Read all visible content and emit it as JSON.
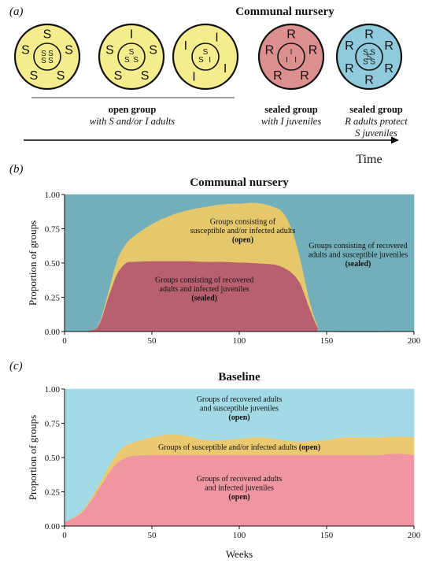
{
  "panel_a": {
    "label": "(a)",
    "title": "Communal nursery",
    "time_label": "Time",
    "groups": [
      {
        "fill": "#f5ec8e",
        "outer": [
          "S",
          "S",
          "S",
          "S",
          "S"
        ],
        "inner": [
          "S",
          "S",
          "S",
          "S"
        ]
      },
      {
        "fill": "#f5ec8e",
        "outer": [
          "I",
          "S",
          "S",
          "S",
          "S"
        ],
        "inner": [
          "S",
          "S",
          "S"
        ]
      },
      {
        "fill": "#f5ec8e",
        "outer": [
          "I",
          "I",
          "I",
          "I"
        ],
        "inner": [
          "S",
          "I",
          "S"
        ]
      },
      {
        "fill": "#dc8f8f",
        "outer": [
          "R",
          "R",
          "R",
          "R",
          "R"
        ],
        "inner": [
          "I",
          "I",
          "I"
        ]
      },
      {
        "fill": "#8fcbdc",
        "outer": [
          "R",
          "R",
          "R",
          "R",
          "R",
          "R"
        ],
        "inner": [
          "S",
          "S",
          "S",
          "S",
          "S"
        ]
      }
    ],
    "captions": [
      {
        "bold": "open group",
        "italic": [
          "with S and/or I adults"
        ]
      },
      {
        "bold": "sealed group",
        "italic": [
          "with I juveniles"
        ]
      },
      {
        "bold": "sealed group",
        "italic": [
          "R adults protect",
          "S juveniles"
        ]
      }
    ]
  },
  "chart_data": [
    {
      "panel_label": "(b)",
      "type": "area",
      "stacked": true,
      "title": "Communal nursery",
      "xlabel": "",
      "ylabel": "Proportion of groups",
      "xlim": [
        0,
        200
      ],
      "ylim": [
        0,
        1
      ],
      "xticks": [
        0,
        50,
        100,
        150,
        200
      ],
      "yticks": [
        0.0,
        0.25,
        0.5,
        0.75,
        1.0
      ],
      "x": [
        0,
        15,
        20,
        25,
        30,
        35,
        40,
        50,
        60,
        70,
        80,
        90,
        100,
        110,
        120,
        125,
        130,
        135,
        140,
        145,
        150,
        200
      ],
      "series": [
        {
          "color": "#b86070",
          "values": [
            0,
            0.01,
            0.06,
            0.25,
            0.42,
            0.5,
            0.51,
            0.515,
            0.515,
            0.515,
            0.51,
            0.51,
            0.505,
            0.5,
            0.49,
            0.47,
            0.43,
            0.35,
            0.18,
            0.03,
            0,
            0
          ]
        },
        {
          "color": "#e6c86c",
          "values": [
            0,
            0.0,
            0.01,
            0.04,
            0.1,
            0.14,
            0.19,
            0.27,
            0.33,
            0.37,
            0.4,
            0.42,
            0.43,
            0.44,
            0.42,
            0.4,
            0.32,
            0.18,
            0.06,
            0.01,
            0,
            0
          ]
        },
        {
          "color": "#72afbb",
          "values": [
            1,
            0.99,
            0.93,
            0.71,
            0.48,
            0.36,
            0.3,
            0.215,
            0.155,
            0.115,
            0.09,
            0.07,
            0.065,
            0.06,
            0.09,
            0.13,
            0.25,
            0.47,
            0.76,
            0.96,
            1,
            1
          ]
        }
      ],
      "annotations": [
        {
          "lines": [
            "Groups consisting of",
            "susceptible and/or infected adults"
          ],
          "bold": "(open)",
          "x": 102,
          "y": 0.735
        },
        {
          "lines": [
            "Groups consisting of recovered",
            "adults and susceptible juveniles"
          ],
          "bold": "(sealed)",
          "x": 168,
          "y": 0.56
        },
        {
          "lines": [
            "Groups consisting of recovered",
            "adults and infected juveniles"
          ],
          "bold": "(sealed)",
          "x": 80,
          "y": 0.31
        }
      ]
    },
    {
      "panel_label": "(c)",
      "type": "area",
      "stacked": true,
      "title": "Baseline",
      "xlabel": "Weeks",
      "ylabel": "Proportion of groups",
      "xlim": [
        0,
        200
      ],
      "ylim": [
        0,
        1
      ],
      "xticks": [
        0,
        50,
        100,
        150,
        200
      ],
      "yticks": [
        0.0,
        0.25,
        0.5,
        0.75,
        1.0
      ],
      "x": [
        0,
        10,
        20,
        25,
        30,
        35,
        40,
        50,
        60,
        70,
        80,
        90,
        100,
        110,
        120,
        130,
        140,
        150,
        160,
        170,
        180,
        190,
        200
      ],
      "series": [
        {
          "color": "#f096a2",
          "values": [
            0.03,
            0.1,
            0.28,
            0.38,
            0.46,
            0.5,
            0.515,
            0.52,
            0.52,
            0.52,
            0.52,
            0.52,
            0.52,
            0.52,
            0.52,
            0.52,
            0.52,
            0.52,
            0.52,
            0.52,
            0.52,
            0.53,
            0.52
          ]
        },
        {
          "color": "#ebc970",
          "values": [
            0.0,
            0.01,
            0.03,
            0.05,
            0.07,
            0.09,
            0.1,
            0.13,
            0.15,
            0.14,
            0.11,
            0.11,
            0.12,
            0.13,
            0.12,
            0.1,
            0.1,
            0.11,
            0.13,
            0.13,
            0.13,
            0.125,
            0.13
          ]
        },
        {
          "color": "#a2dbe6",
          "values": [
            0.97,
            0.89,
            0.69,
            0.57,
            0.47,
            0.41,
            0.385,
            0.35,
            0.33,
            0.34,
            0.37,
            0.37,
            0.36,
            0.35,
            0.36,
            0.38,
            0.38,
            0.37,
            0.35,
            0.35,
            0.35,
            0.345,
            0.35
          ]
        }
      ],
      "annotations": [
        {
          "lines": [
            "Groups of recovered adults",
            "and susceptible juveniles"
          ],
          "bold": "(open)",
          "x": 100,
          "y": 0.86
        },
        {
          "lines": [
            "Groups of susceptible and/or infected adults"
          ],
          "bold": "(open)",
          "inline": true,
          "x": 100,
          "y": 0.575
        },
        {
          "lines": [
            "Groups of recovered adults",
            "and infected juveniles"
          ],
          "bold": "(open)",
          "x": 100,
          "y": 0.28
        }
      ]
    }
  ]
}
